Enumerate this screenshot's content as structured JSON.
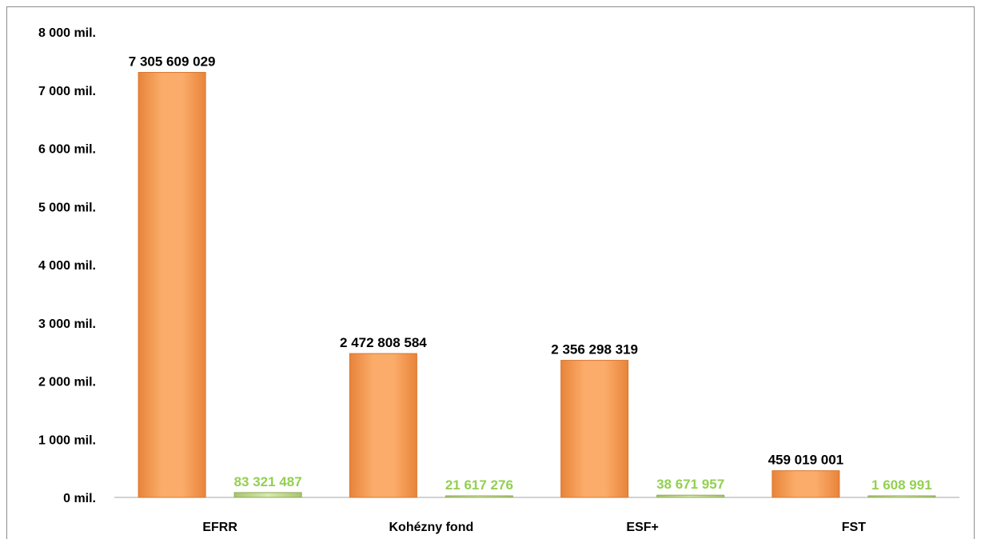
{
  "chart_data": {
    "type": "bar",
    "title": "",
    "xlabel": "",
    "ylabel": "",
    "categories": [
      "EFRR",
      "Kohézny fond",
      "ESF+",
      "FST"
    ],
    "series": [
      {
        "values": [
          7305609029,
          2472808584,
          2356298319,
          459019001
        ],
        "labels": [
          "7 305 609 029",
          "2 472 808 584",
          "2 356 298 319",
          "459 019 001"
        ],
        "color": "#f79646"
      },
      {
        "values": [
          83321487,
          21617276,
          38671957,
          1608991
        ],
        "labels": [
          "83 321 487",
          "21 617 276",
          "38 671 957",
          "1 608 991"
        ],
        "color": "#c3d69b",
        "label_color": "#92d050"
      }
    ],
    "ylim": [
      0,
      8000000000
    ],
    "yticks": [
      0,
      1000000000,
      2000000000,
      3000000000,
      4000000000,
      5000000000,
      6000000000,
      7000000000,
      8000000000
    ],
    "ytick_labels": [
      "0 mil.",
      "1  000 mil.",
      "2  000 mil.",
      "3  000 mil.",
      "4  000 mil.",
      "5  000 mil.",
      "6  000 mil.",
      "7  000 mil.",
      "8  000 mil."
    ],
    "grid": false,
    "legend": "none"
  }
}
